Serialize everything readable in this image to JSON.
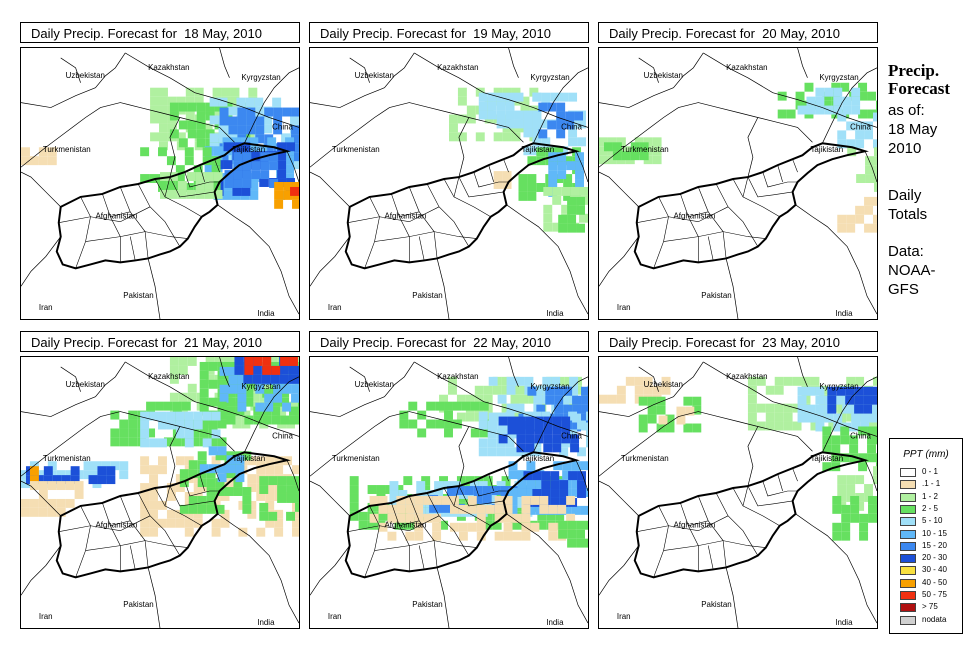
{
  "panels": [
    {
      "title": "Daily Precip. Forecast for  18 May, 2010",
      "intensity": "high"
    },
    {
      "title": "Daily Precip. Forecast for  19 May, 2010",
      "intensity": "low"
    },
    {
      "title": "Daily Precip. Forecast for  20 May, 2010",
      "intensity": "low"
    },
    {
      "title": "Daily Precip. Forecast for  21 May, 2010",
      "intensity": "high"
    },
    {
      "title": "Daily Precip. Forecast for  22 May, 2010",
      "intensity": "medium"
    },
    {
      "title": "Daily Precip. Forecast for  23 May, 2010",
      "intensity": "low"
    }
  ],
  "country_labels": {
    "uzbekistan": "Uzbekistan",
    "kazakhstan": "Kazakhstan",
    "kyrgyzstan": "Kyrgyzstan",
    "turkmenistan": "Turkmenistan",
    "tajikistan": "Tajikistan",
    "china": "China",
    "afghanistan": "Afghanistan",
    "pakistan": "Pakistan",
    "iran": "Iran",
    "india": "India"
  },
  "sidebar": {
    "title_line1": "Precip.",
    "title_line2": "Forecast",
    "asof": "as of:",
    "date_line1": "18 May",
    "date_line2": "2010",
    "totals_line1": "Daily",
    "totals_line2": "Totals",
    "data_line1": "Data:",
    "data_line2": "NOAA-",
    "data_line3": "GFS"
  },
  "legend": {
    "title": "PPT (mm)",
    "items": [
      {
        "label": "0 - 1",
        "color": "#ffffff"
      },
      {
        "label": ".1 - 1",
        "color": "#f5deb3"
      },
      {
        "label": "1 - 2",
        "color": "#b0f0a0"
      },
      {
        "label": "2 - 5",
        "color": "#66e060"
      },
      {
        "label": "5 - 10",
        "color": "#a0e0f8"
      },
      {
        "label": "10 - 15",
        "color": "#60b8f8"
      },
      {
        "label": "15 - 20",
        "color": "#3c88f0"
      },
      {
        "label": "20 - 30",
        "color": "#1c50d8"
      },
      {
        "label": "30 - 40",
        "color": "#f8e040"
      },
      {
        "label": "40 - 50",
        "color": "#f8a000"
      },
      {
        "label": "50 - 75",
        "color": "#f03010"
      },
      {
        "label": "> 75",
        "color": "#b01010"
      },
      {
        "label": "nodata",
        "color": "#d0d0d0"
      }
    ]
  }
}
